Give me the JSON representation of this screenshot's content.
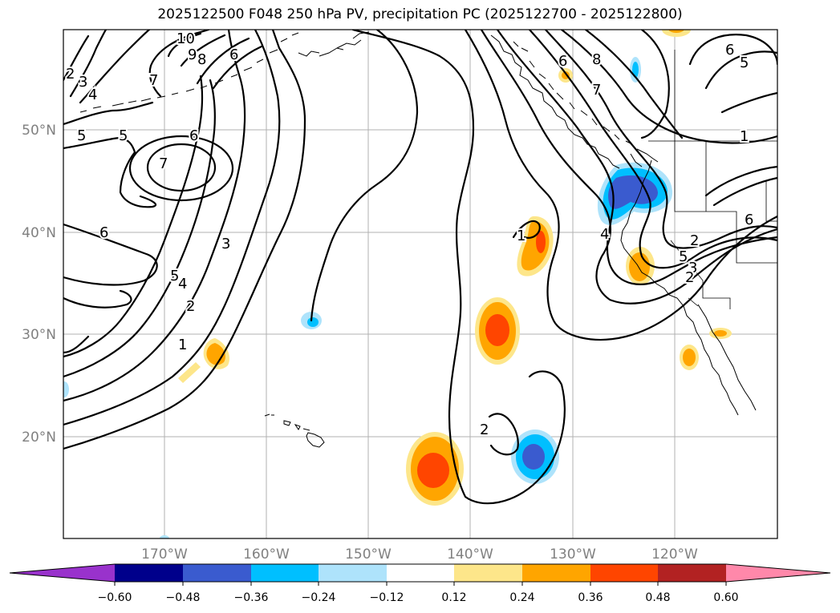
{
  "title": "2025122500 F048 250 hPa PV, precipitation PC (2025122700 - 2025122800)",
  "colors": {
    "level_neg_extend": "#9932cc",
    "level_n060": "#00008b",
    "level_n048": "#3a5bcf",
    "level_n036": "#00bfff",
    "level_n024": "#aee3fb",
    "level_zero": "#ffffff",
    "level_p012": "#fde68a",
    "level_p024": "#ffa500",
    "level_p036": "#ff4500",
    "level_p048": "#b22222",
    "level_pos_extend": "#ff88aa"
  },
  "map": {
    "lat_labels": [
      "50°N",
      "40°N",
      "30°N",
      "20°N"
    ],
    "lon_labels": [
      "170°W",
      "160°W",
      "150°W",
      "140°W",
      "130°W",
      "120°W"
    ],
    "pv_contour_labels": [
      "10",
      "9",
      "8",
      "6",
      "7",
      "2",
      "3",
      "4",
      "5",
      "5",
      "6",
      "7",
      "6",
      "5",
      "4",
      "3",
      "2",
      "1",
      "1",
      "2",
      "6",
      "8",
      "7",
      "6",
      "5",
      "1",
      "4",
      "5",
      "3",
      "2",
      "6",
      "2"
    ]
  },
  "colorbar": {
    "ticks": [
      "−0.60",
      "−0.48",
      "−0.36",
      "−0.24",
      "−0.12",
      "0.12",
      "0.24",
      "0.36",
      "0.48",
      "0.60"
    ]
  }
}
